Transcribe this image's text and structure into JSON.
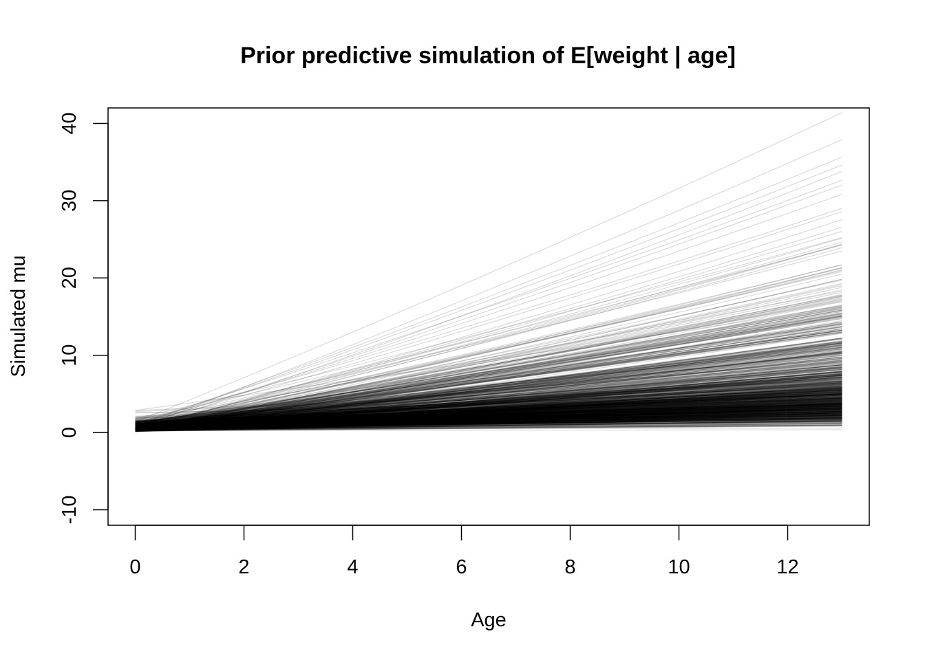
{
  "chart_data": {
    "type": "line",
    "title": "Prior predictive simulation of E[weight | age]",
    "xlabel": "Age",
    "ylabel": "Simulated mu",
    "xlim": [
      -0.5,
      13.5
    ],
    "ylim": [
      -12,
      42
    ],
    "x_ticks": [
      0,
      2,
      4,
      6,
      8,
      10,
      12
    ],
    "y_ticks": [
      -10,
      0,
      10,
      20,
      30,
      40
    ],
    "x_range_of_lines": [
      0,
      13
    ],
    "line_color": "#000000",
    "line_alpha": 0.15,
    "grid": false,
    "legend": "none",
    "series_description": {
      "n_lines": 1000,
      "intercept_range_at_age_0": [
        0,
        3
      ],
      "value_range_at_age_13": [
        0.3,
        41.5
      ]
    }
  }
}
